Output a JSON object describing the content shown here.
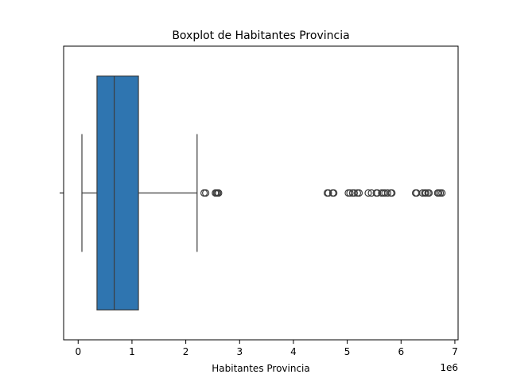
{
  "chart_data": {
    "type": "boxplot",
    "orientation": "horizontal",
    "title": "Boxplot de Habitantes Provincia",
    "xlabel": "Habitantes Provincia",
    "ylabel": "",
    "x_offset_label": "1e6",
    "xlim": [
      -0.27,
      7.06
    ],
    "x_tick_values": [
      0,
      1,
      2,
      3,
      4,
      5,
      6,
      7
    ],
    "x_tick_labels": [
      "0",
      "1",
      "2",
      "3",
      "4",
      "5",
      "6",
      "7"
    ],
    "box_color": "#2f75b0",
    "line_color": "#3d3d3d",
    "grid": false,
    "box": {
      "whisker_low": 0.07,
      "q1": 0.35,
      "median": 0.67,
      "q3": 1.12,
      "whisker_high": 2.21
    },
    "outliers": [
      2.34,
      2.37,
      2.55,
      2.57,
      2.59,
      2.61,
      4.63,
      4.65,
      4.73,
      4.75,
      5.02,
      5.05,
      5.1,
      5.13,
      5.19,
      5.22,
      5.39,
      5.45,
      5.54,
      5.56,
      5.64,
      5.67,
      5.7,
      5.75,
      5.81,
      5.83,
      6.27,
      6.29,
      6.4,
      6.44,
      6.46,
      6.5,
      6.52,
      6.68,
      6.7,
      6.73,
      6.76
    ]
  }
}
